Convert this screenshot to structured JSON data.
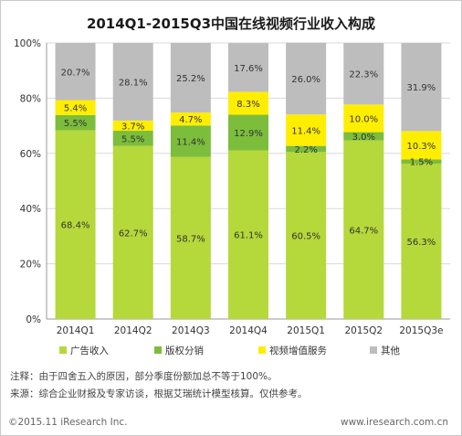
{
  "chart_data": {
    "type": "bar",
    "stacked": true,
    "title": "2014Q1-2015Q3中国在线视频行业收入构成",
    "categories": [
      "2014Q1",
      "2014Q2",
      "2014Q3",
      "2014Q4",
      "2015Q1",
      "2015Q2",
      "2015Q3e"
    ],
    "ylim": [
      0,
      100
    ],
    "yticks": [
      "0%",
      "20%",
      "40%",
      "60%",
      "80%",
      "100%"
    ],
    "grid": true,
    "legend_position": "bottom",
    "series": [
      {
        "name": "广告收入",
        "color": "#b5d83a",
        "values": [
          68.4,
          62.7,
          58.7,
          61.1,
          60.5,
          64.7,
          56.3
        ],
        "labels": [
          "68.4%",
          "62.7%",
          "58.7%",
          "61.1%",
          "60.5%",
          "64.7%",
          "56.3%"
        ]
      },
      {
        "name": "版权分销",
        "color": "#7cbd3c",
        "values": [
          5.5,
          5.5,
          11.4,
          12.9,
          2.2,
          3.0,
          1.5
        ],
        "labels": [
          "5.5%",
          "5.5%",
          "11.4%",
          "12.9%",
          "2.2%",
          "3.0%",
          "1.5%"
        ]
      },
      {
        "name": "视频增值服务",
        "color": "#ffee00",
        "values": [
          5.4,
          3.7,
          4.7,
          8.3,
          11.4,
          10.0,
          10.3
        ],
        "labels": [
          "5.4%",
          "3.7%",
          "4.7%",
          "8.3%",
          "11.4%",
          "10.0%",
          "10.3%"
        ]
      },
      {
        "name": "其他",
        "color": "#bdbdbd",
        "values": [
          20.7,
          28.1,
          25.2,
          17.6,
          26.0,
          22.3,
          31.9
        ],
        "labels": [
          "20.7%",
          "28.1%",
          "25.2%",
          "17.6%",
          "26.0%",
          "22.3%",
          "31.9%"
        ]
      }
    ]
  },
  "notes": {
    "note": "注释：由于四舍五入的原因，部分季度份额加总不等于100%。",
    "source": "来源：综合企业财报及专家访谈，根据艾瑞统计模型核算。仅供参考。"
  },
  "footer": {
    "copyright": "©2015.11 iResearch Inc.",
    "website": "www.iresearch.com.cn"
  }
}
